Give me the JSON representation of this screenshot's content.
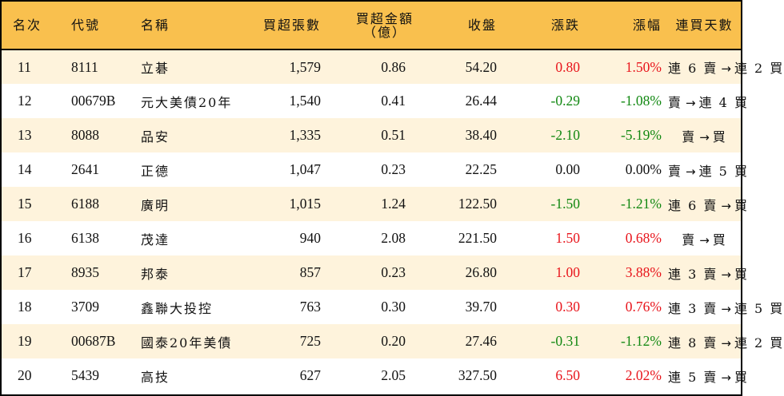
{
  "table": {
    "headers": {
      "rank": "名次",
      "code": "代號",
      "name": "名稱",
      "net_buy_volume": "買超張數",
      "net_buy_amount_line1": "買超金額",
      "net_buy_amount_line2": "（億）",
      "close": "收盤",
      "change": "漲跌",
      "change_pct": "漲幅",
      "streak": "連買天數"
    },
    "colors": {
      "header_bg": "#F9C04E",
      "row_odd_bg": "#FEF3DC",
      "row_even_bg": "#FFFFFF",
      "up": "#E8141B",
      "down": "#118811",
      "border": "#000000"
    },
    "rows": [
      {
        "rank": "11",
        "code": "8111",
        "name": "立碁",
        "volume": "1,579",
        "amount": "0.86",
        "close": "54.20",
        "change": "0.80",
        "pct": "1.50%",
        "direction": "up",
        "streak_from": "連 6 賣",
        "arrow": "→",
        "streak_to": "連 2 買"
      },
      {
        "rank": "12",
        "code": "00679B",
        "name": "元大美債20年",
        "volume": "1,540",
        "amount": "0.41",
        "close": "26.44",
        "change": "-0.29",
        "pct": "-1.08%",
        "direction": "down",
        "streak_from": "賣",
        "arrow": "→",
        "streak_to": "連 4 買"
      },
      {
        "rank": "13",
        "code": "8088",
        "name": "品安",
        "volume": "1,335",
        "amount": "0.51",
        "close": "38.40",
        "change": "-2.10",
        "pct": "-5.19%",
        "direction": "down",
        "streak_from": "賣",
        "arrow": "→",
        "streak_to": "買"
      },
      {
        "rank": "14",
        "code": "2641",
        "name": "正德",
        "volume": "1,047",
        "amount": "0.23",
        "close": "22.25",
        "change": "0.00",
        "pct": "0.00%",
        "direction": "flat",
        "streak_from": "賣",
        "arrow": "→",
        "streak_to": "連 5 買"
      },
      {
        "rank": "15",
        "code": "6188",
        "name": "廣明",
        "volume": "1,015",
        "amount": "1.24",
        "close": "122.50",
        "change": "-1.50",
        "pct": "-1.21%",
        "direction": "down",
        "streak_from": "連 6 賣",
        "arrow": "→",
        "streak_to": "買"
      },
      {
        "rank": "16",
        "code": "6138",
        "name": "茂達",
        "volume": "940",
        "amount": "2.08",
        "close": "221.50",
        "change": "1.50",
        "pct": "0.68%",
        "direction": "up",
        "streak_from": "賣",
        "arrow": "→",
        "streak_to": "買"
      },
      {
        "rank": "17",
        "code": "8935",
        "name": "邦泰",
        "volume": "857",
        "amount": "0.23",
        "close": "26.80",
        "change": "1.00",
        "pct": "3.88%",
        "direction": "up",
        "streak_from": "連 3 賣",
        "arrow": "→",
        "streak_to": "買"
      },
      {
        "rank": "18",
        "code": "3709",
        "name": "鑫聯大投控",
        "volume": "763",
        "amount": "0.30",
        "close": "39.70",
        "change": "0.30",
        "pct": "0.76%",
        "direction": "up",
        "streak_from": "連 3 賣",
        "arrow": "→",
        "streak_to": "連 5 買"
      },
      {
        "rank": "19",
        "code": "00687B",
        "name": "國泰20年美債",
        "volume": "725",
        "amount": "0.20",
        "close": "27.46",
        "change": "-0.31",
        "pct": "-1.12%",
        "direction": "down",
        "streak_from": "連 8 賣",
        "arrow": "→",
        "streak_to": "連 2 買"
      },
      {
        "rank": "20",
        "code": "5439",
        "name": "高技",
        "volume": "627",
        "amount": "2.05",
        "close": "327.50",
        "change": "6.50",
        "pct": "2.02%",
        "direction": "up",
        "streak_from": "連 5 賣",
        "arrow": "→",
        "streak_to": "買"
      }
    ]
  }
}
